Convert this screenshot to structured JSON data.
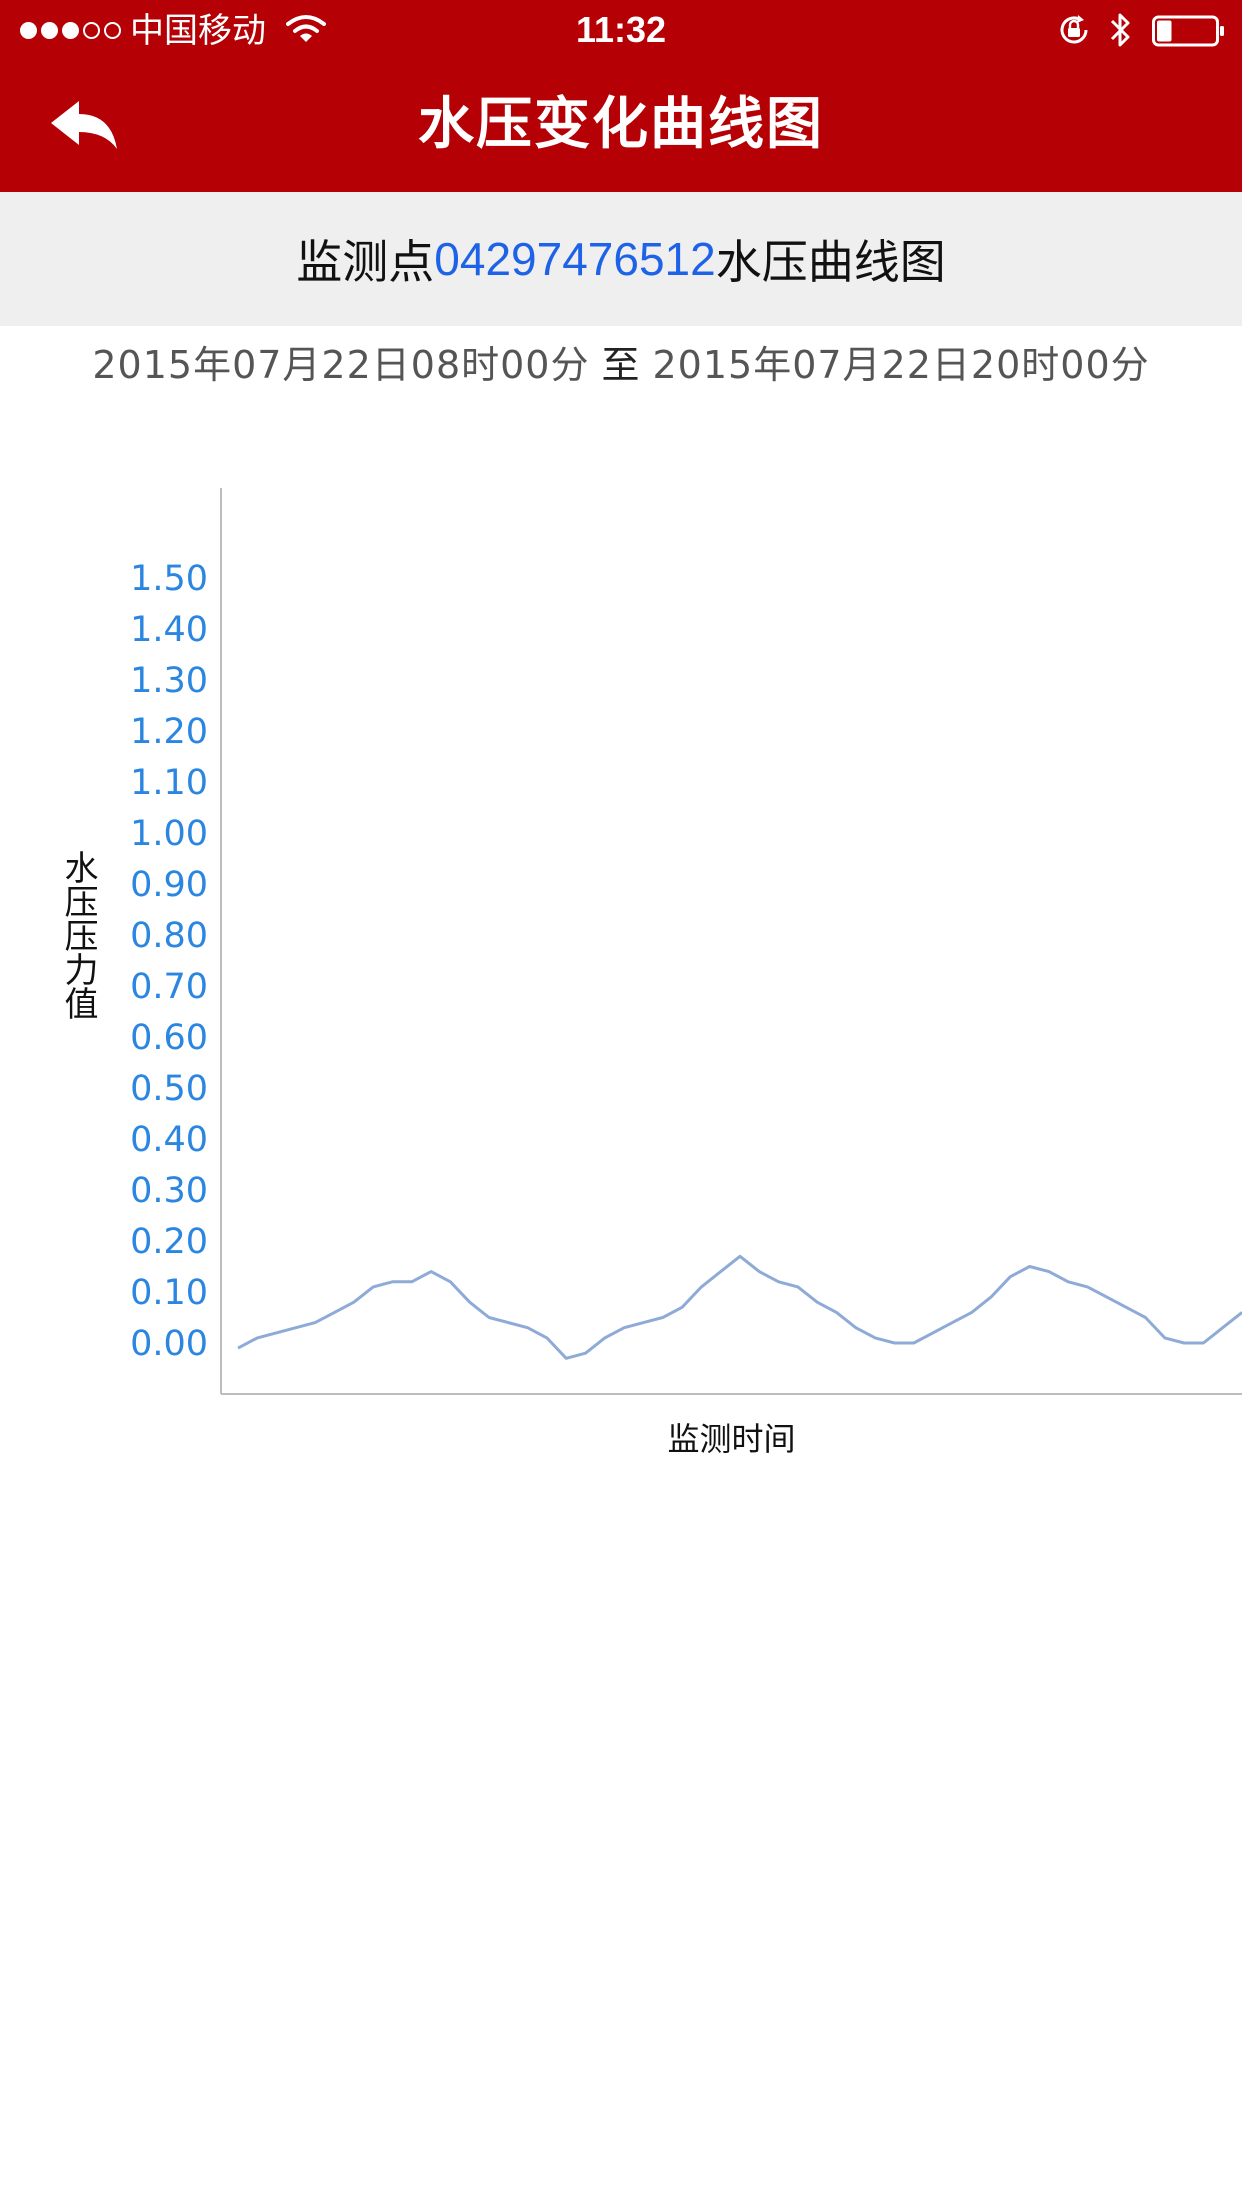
{
  "status_bar": {
    "signal": {
      "full": 3,
      "empty": 2
    },
    "carrier": "中国移动",
    "time": "11:32",
    "battery_level": 0.25,
    "icons": [
      "wifi-icon",
      "orientation-lock-icon",
      "bluetooth-icon",
      "battery-icon"
    ]
  },
  "nav": {
    "title": "水压变化曲线图",
    "back_icon": "back-arrow-icon"
  },
  "subtitle": {
    "prefix": "监测点",
    "station_id": "04297476512",
    "suffix": "水压曲线图"
  },
  "range": {
    "start": "2015年07月22日08时00分",
    "separator": "至",
    "end": "2015年07月22日20时00分"
  },
  "colors": {
    "header_bg": "#b50005",
    "subtitle_bg": "#efefef",
    "station_id": "#1e62e8",
    "tick_label": "#2a86e0",
    "line": "#8eaad6",
    "axis": "#bdbdbd"
  },
  "chart_data": {
    "type": "line",
    "title": "",
    "xlabel": "监测时间",
    "ylabel": "水压压力值",
    "ylim": [
      0,
      1.5
    ],
    "y_ticks": [
      "0.00",
      "0.10",
      "0.20",
      "0.30",
      "0.40",
      "0.50",
      "0.60",
      "0.70",
      "0.80",
      "0.90",
      "1.00",
      "1.10",
      "1.20",
      "1.30",
      "1.40",
      "1.50"
    ],
    "x_ticks": [],
    "grid": false,
    "series": [
      {
        "values": [
          -0.01,
          0.01,
          0.02,
          0.03,
          0.04,
          0.06,
          0.08,
          0.11,
          0.12,
          0.12,
          0.14,
          0.12,
          0.08,
          0.05,
          0.04,
          0.03,
          0.01,
          -0.03,
          -0.02,
          0.01,
          0.03,
          0.04,
          0.05,
          0.07,
          0.11,
          0.14,
          0.17,
          0.14,
          0.12,
          0.11,
          0.08,
          0.06,
          0.03,
          0.01,
          0.0,
          0.0,
          0.02,
          0.04,
          0.06,
          0.09,
          0.13,
          0.15,
          0.14,
          0.12,
          0.11,
          0.09,
          0.07,
          0.05,
          0.01,
          0.0,
          0.0,
          0.03,
          0.06
        ]
      }
    ]
  }
}
